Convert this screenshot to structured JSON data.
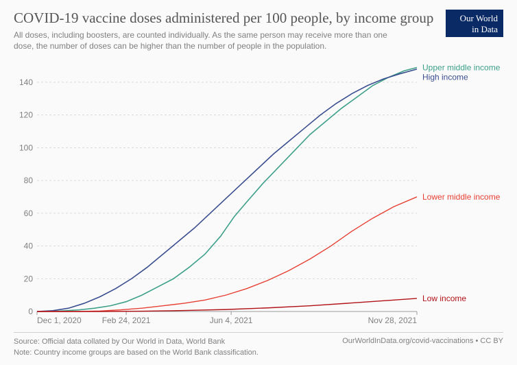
{
  "header": {
    "title": "COVID-19 vaccine doses administered per 100 people, by income group",
    "subtitle": "All doses, including boosters, are counted individually. As the same person may receive more than one dose, the number of doses can be higher than the number of people in the population."
  },
  "logo": {
    "line1": "Our World",
    "line2": "in Data",
    "bg": "#0a2a66"
  },
  "footer": {
    "source": "Source: Official data collated by Our World in Data, World Bank",
    "note": "Note: Country income groups are based on the World Bank classification.",
    "right": "OurWorldInData.org/covid-vaccinations • CC BY"
  },
  "chart": {
    "type": "line",
    "background": "#fafafa",
    "grid_color": "#d9d9d9",
    "axis_color": "#999999",
    "tick_color": "#808080",
    "tick_fontsize": 12,
    "label_fontsize": 12,
    "title_fontsize": 21,
    "x_axis": {
      "domain": [
        0,
        362
      ],
      "ticks": [
        {
          "t": 0,
          "label": "Dec 1, 2020"
        },
        {
          "t": 85,
          "label": "Feb 24, 2021"
        },
        {
          "t": 185,
          "label": "Jun 4, 2021"
        },
        {
          "t": 362,
          "label": "Nov 28, 2021"
        }
      ]
    },
    "y_axis": {
      "domain": [
        0,
        150
      ],
      "ticks": [
        0,
        20,
        40,
        60,
        80,
        100,
        120,
        140
      ]
    },
    "series": [
      {
        "name": "Upper middle income",
        "color": "#3da089",
        "label_color": "#3da089",
        "width": 1.6,
        "points": [
          [
            0,
            0
          ],
          [
            20,
            0.2
          ],
          [
            40,
            1
          ],
          [
            55,
            2
          ],
          [
            70,
            3.5
          ],
          [
            85,
            6
          ],
          [
            100,
            10
          ],
          [
            115,
            15
          ],
          [
            130,
            20
          ],
          [
            145,
            27
          ],
          [
            160,
            35
          ],
          [
            175,
            46
          ],
          [
            188,
            58
          ],
          [
            200,
            67
          ],
          [
            215,
            78
          ],
          [
            230,
            88
          ],
          [
            245,
            98
          ],
          [
            260,
            108
          ],
          [
            275,
            116
          ],
          [
            290,
            124
          ],
          [
            305,
            131
          ],
          [
            320,
            138
          ],
          [
            335,
            143
          ],
          [
            350,
            147
          ],
          [
            362,
            149
          ]
        ]
      },
      {
        "name": "High income",
        "color": "#3a4e8f",
        "label_color": "#3a4e8f",
        "width": 1.6,
        "points": [
          [
            0,
            0
          ],
          [
            15,
            0.5
          ],
          [
            30,
            2
          ],
          [
            45,
            5
          ],
          [
            60,
            9
          ],
          [
            75,
            14
          ],
          [
            90,
            20
          ],
          [
            105,
            27
          ],
          [
            120,
            35
          ],
          [
            135,
            43
          ],
          [
            150,
            51
          ],
          [
            165,
            60
          ],
          [
            180,
            69
          ],
          [
            195,
            78
          ],
          [
            210,
            87
          ],
          [
            225,
            96
          ],
          [
            240,
            104
          ],
          [
            255,
            112
          ],
          [
            270,
            120
          ],
          [
            285,
            127
          ],
          [
            300,
            133
          ],
          [
            315,
            138
          ],
          [
            330,
            142
          ],
          [
            345,
            145
          ],
          [
            362,
            148
          ]
        ]
      },
      {
        "name": "Lower middle income",
        "color": "#e73f33",
        "label_color": "#e73f33",
        "width": 1.4,
        "points": [
          [
            0,
            0
          ],
          [
            40,
            0
          ],
          [
            60,
            0.3
          ],
          [
            80,
            1
          ],
          [
            100,
            2
          ],
          [
            120,
            3.5
          ],
          [
            140,
            5
          ],
          [
            160,
            7
          ],
          [
            180,
            10
          ],
          [
            200,
            14
          ],
          [
            220,
            19
          ],
          [
            240,
            25
          ],
          [
            260,
            32
          ],
          [
            280,
            40
          ],
          [
            300,
            49
          ],
          [
            320,
            57
          ],
          [
            340,
            64
          ],
          [
            362,
            70
          ]
        ]
      },
      {
        "name": "Low income",
        "color": "#b01217",
        "label_color": "#b01217",
        "width": 1.4,
        "points": [
          [
            0,
            0
          ],
          [
            60,
            0
          ],
          [
            100,
            0.2
          ],
          [
            140,
            0.6
          ],
          [
            180,
            1.2
          ],
          [
            220,
            2.2
          ],
          [
            260,
            3.5
          ],
          [
            300,
            5.2
          ],
          [
            340,
            7
          ],
          [
            362,
            8
          ]
        ]
      }
    ]
  }
}
